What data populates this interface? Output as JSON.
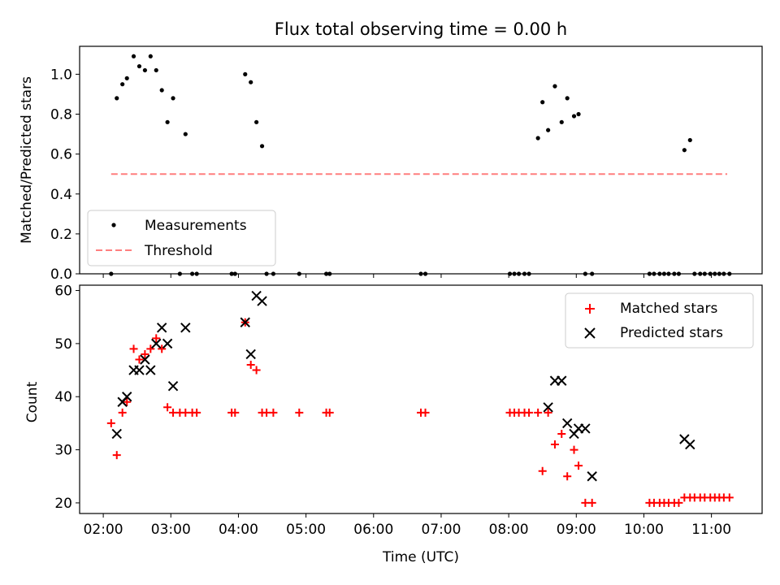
{
  "chart_data": {
    "title": "Flux total observing time = 0.00 h",
    "xlabel": "Time (UTC)",
    "x_ticks": [
      "02:00",
      "03:00",
      "04:00",
      "05:00",
      "06:00",
      "07:00",
      "08:00",
      "09:00",
      "10:00",
      "11:00"
    ],
    "xlim": [
      "01:39",
      "11:45"
    ],
    "grid": false,
    "colors": {
      "measurements": "#000000",
      "threshold": "#ff7f7f",
      "matched": "#ff0000",
      "predicted": "#000000"
    },
    "panels": [
      {
        "type": "scatter",
        "ylabel": "Matched/Predicted stars",
        "ylim": [
          0,
          1.14
        ],
        "y_ticks": [
          "0.0",
          "0.2",
          "0.4",
          "0.6",
          "0.8",
          "1.0"
        ],
        "legend_position": "lower-left",
        "series": [
          {
            "name": "Measurements",
            "marker": "dot",
            "x": [
              "02:07",
              "02:12",
              "02:17",
              "02:21",
              "02:27",
              "02:32",
              "02:37",
              "02:42",
              "02:47",
              "02:52",
              "02:57",
              "03:02",
              "03:08",
              "03:13",
              "03:19",
              "03:23",
              "03:54",
              "03:57",
              "04:06",
              "04:11",
              "04:16",
              "04:21",
              "04:25",
              "04:31",
              "04:54",
              "05:18",
              "05:21",
              "06:42",
              "06:46",
              "08:01",
              "08:05",
              "08:09",
              "08:14",
              "08:18",
              "08:26",
              "08:30",
              "08:35",
              "08:41",
              "08:47",
              "08:52",
              "08:58",
              "09:02",
              "09:08",
              "09:14",
              "10:05",
              "10:09",
              "10:14",
              "10:18",
              "10:22",
              "10:27",
              "10:31",
              "10:36",
              "10:41",
              "10:45",
              "10:50",
              "10:54",
              "10:59",
              "11:03",
              "11:07",
              "11:11",
              "11:16"
            ],
            "y": [
              0.0,
              0.88,
              0.95,
              0.98,
              1.09,
              1.04,
              1.02,
              1.09,
              1.02,
              0.92,
              0.76,
              0.88,
              0.0,
              0.7,
              0.0,
              0.0,
              0.0,
              0.0,
              1.0,
              0.96,
              0.76,
              0.64,
              0.0,
              0.0,
              0.0,
              0.0,
              0.0,
              0.0,
              0.0,
              0.0,
              0.0,
              0.0,
              0.0,
              0.0,
              0.68,
              0.86,
              0.72,
              0.94,
              0.76,
              0.88,
              0.79,
              0.8,
              0.0,
              0.0,
              0.0,
              0.0,
              0.0,
              0.0,
              0.0,
              0.0,
              0.0,
              0.62,
              0.67,
              0.0,
              0.0,
              0.0,
              0.0,
              0.0,
              0.0,
              0.0,
              0.0
            ]
          },
          {
            "name": "Threshold",
            "marker": "dashed-line",
            "x": [
              "02:07",
              "11:14"
            ],
            "y": [
              0.5,
              0.5
            ]
          }
        ]
      },
      {
        "type": "scatter",
        "ylabel": "Count",
        "ylim": [
          18,
          61
        ],
        "y_ticks": [
          "20",
          "30",
          "40",
          "50",
          "60"
        ],
        "legend_position": "upper-right",
        "series": [
          {
            "name": "Matched stars",
            "marker": "plus",
            "x": [
              "02:07",
              "02:12",
              "02:17",
              "02:21",
              "02:27",
              "02:32",
              "02:37",
              "02:42",
              "02:47",
              "02:52",
              "02:57",
              "03:02",
              "03:08",
              "03:13",
              "03:19",
              "03:23",
              "03:54",
              "03:57",
              "04:06",
              "04:11",
              "04:16",
              "04:21",
              "04:25",
              "04:31",
              "04:54",
              "05:18",
              "05:21",
              "06:42",
              "06:46",
              "08:01",
              "08:05",
              "08:09",
              "08:14",
              "08:18",
              "08:26",
              "08:30",
              "08:35",
              "08:41",
              "08:47",
              "08:52",
              "08:58",
              "09:02",
              "09:08",
              "09:14",
              "10:05",
              "10:09",
              "10:14",
              "10:18",
              "10:22",
              "10:27",
              "10:31",
              "10:36",
              "10:41",
              "10:45",
              "10:50",
              "10:54",
              "10:59",
              "11:03",
              "11:07",
              "11:11",
              "11:16"
            ],
            "y": [
              35,
              29,
              37,
              39,
              49,
              47,
              48,
              49,
              51,
              49,
              38,
              37,
              37,
              37,
              37,
              37,
              37,
              37,
              54,
              46,
              45,
              37,
              37,
              37,
              37,
              37,
              37,
              37,
              37,
              37,
              37,
              37,
              37,
              37,
              37,
              26,
              37,
              31,
              33,
              25,
              30,
              27,
              20,
              20,
              20,
              20,
              20,
              20,
              20,
              20,
              20,
              21,
              21,
              21,
              21,
              21,
              21,
              21,
              21,
              21,
              21
            ]
          },
          {
            "name": "Predicted stars",
            "marker": "x",
            "x": [
              "02:12",
              "02:17",
              "02:21",
              "02:27",
              "02:32",
              "02:37",
              "02:42",
              "02:47",
              "02:52",
              "02:57",
              "03:02",
              "03:13",
              "04:06",
              "04:11",
              "04:16",
              "04:21",
              "08:35",
              "08:41",
              "08:47",
              "08:52",
              "08:58",
              "09:02",
              "09:08",
              "09:14",
              "10:36",
              "10:41"
            ],
            "y": [
              33,
              39,
              40,
              45,
              45,
              47,
              45,
              50,
              53,
              50,
              42,
              53,
              54,
              48,
              59,
              58,
              38,
              43,
              43,
              35,
              33,
              34,
              34,
              25,
              32,
              31
            ]
          }
        ]
      }
    ]
  }
}
